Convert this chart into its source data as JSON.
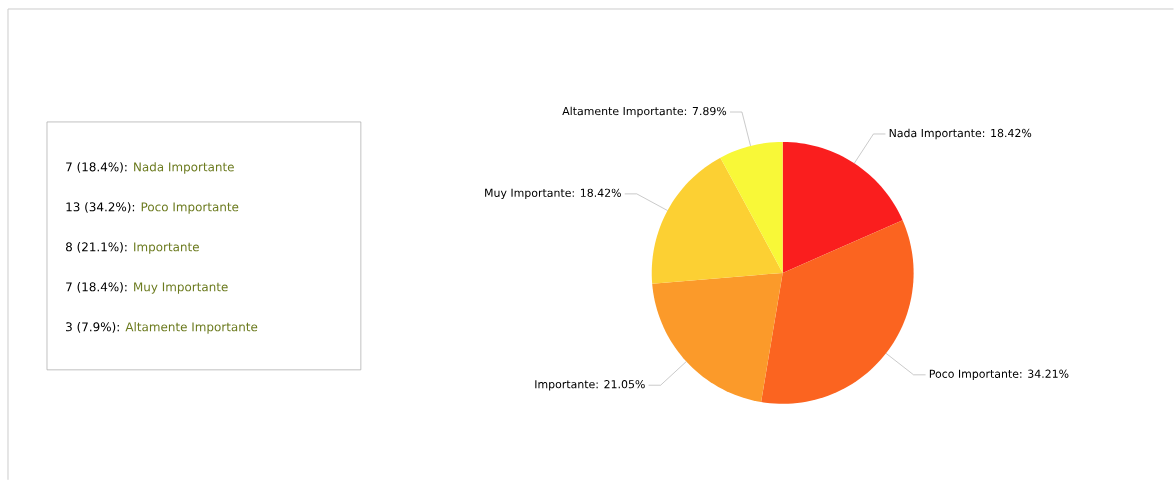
{
  "chart_data": {
    "type": "pie",
    "categories": [
      "Nada Importante",
      "Poco Importante",
      "Importante",
      "Muy Importante",
      "Altamente Importante"
    ],
    "values": [
      18.42,
      34.21,
      21.05,
      18.42,
      7.89
    ],
    "value_labels": [
      ": 18.42%",
      ": 34.21%",
      ": 21.05%",
      ": 18.42%",
      ": 7.89%"
    ],
    "colors": [
      "#fa1e1e",
      "#fb6420",
      "#fb9a2a",
      "#fcd033",
      "#f8f838"
    ],
    "annotations": [
      "7 (18.4%):",
      "Nada Importante",
      "13 (34.2%):",
      "Poco Importante",
      "8 (21.1%):",
      "Importante",
      "7 (18.4%):",
      "Muy Importante",
      "3 (7.9%):",
      "Altamente Importante"
    ]
  }
}
